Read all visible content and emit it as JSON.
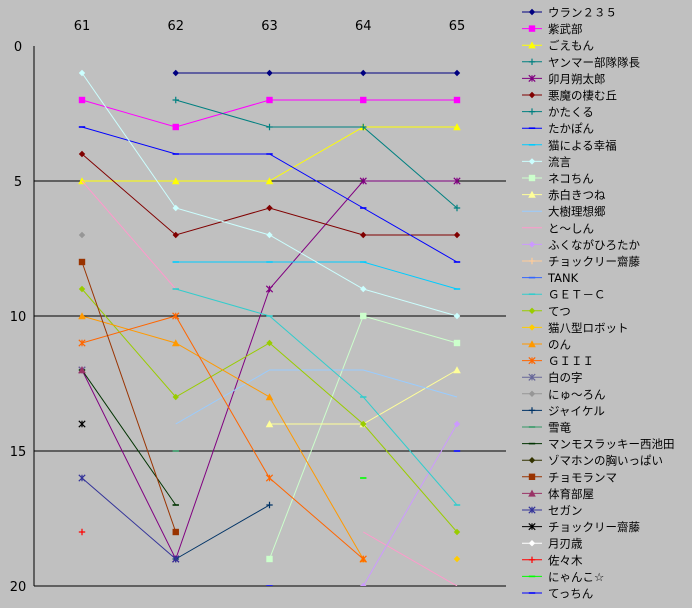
{
  "chart_data": {
    "type": "line",
    "x": [
      "61",
      "62",
      "63",
      "64",
      "65"
    ],
    "ylim": [
      0,
      20
    ],
    "y_reversed": true,
    "yticks": [
      0,
      5,
      10,
      15,
      20
    ],
    "grid": "horizontal at 5, 10, 15, 20",
    "legend_position": "right",
    "background": "#c0c0c0",
    "series": [
      {
        "name": "ウラン２３５",
        "color": "#000080",
        "marker": "diamond",
        "values": [
          null,
          1,
          1,
          1,
          1
        ]
      },
      {
        "name": "紫武部",
        "color": "#ff00ff",
        "marker": "square",
        "values": [
          2,
          3,
          2,
          2,
          2
        ]
      },
      {
        "name": "ごえもん",
        "color": "#ffff00",
        "marker": "triangle",
        "values": [
          5,
          5,
          5,
          3,
          3
        ]
      },
      {
        "name": "ヤンマー部隊隊長",
        "color": "#008080",
        "marker": "plus",
        "values": [
          null,
          2,
          3,
          3,
          6
        ]
      },
      {
        "name": "卯月朔太郎",
        "color": "#800080",
        "marker": "star",
        "values": [
          12,
          19,
          9,
          5,
          5
        ]
      },
      {
        "name": "悪魔の棲む丘",
        "color": "#800000",
        "marker": "diamond",
        "values": [
          4,
          7,
          6,
          7,
          7
        ]
      },
      {
        "name": "かたくる",
        "color": "#008080",
        "marker": "plus",
        "values": [
          null,
          null,
          null,
          null,
          null
        ]
      },
      {
        "name": "たかぽん",
        "color": "#0000ff",
        "marker": "dash",
        "values": [
          3,
          4,
          4,
          6,
          8
        ]
      },
      {
        "name": "猫による幸福",
        "color": "#00ccff",
        "marker": "dash",
        "values": [
          null,
          8,
          8,
          8,
          9
        ]
      },
      {
        "name": "流言",
        "color": "#ccffff",
        "marker": "diamond",
        "values": [
          1,
          6,
          7,
          9,
          10
        ]
      },
      {
        "name": "ネコちん",
        "color": "#ccffcc",
        "marker": "square",
        "values": [
          null,
          null,
          19,
          10,
          11
        ]
      },
      {
        "name": "赤白きつね",
        "color": "#ffff99",
        "marker": "triangle",
        "values": [
          null,
          null,
          14,
          14,
          12
        ]
      },
      {
        "name": "大樹理想郷",
        "color": "#99ccff",
        "marker": "none",
        "values": [
          null,
          14,
          12,
          12,
          13
        ]
      },
      {
        "name": "と～しん",
        "color": "#ff99cc",
        "marker": "none",
        "values": [
          5,
          9,
          null,
          18,
          20
        ]
      },
      {
        "name": "ふくながひろたか",
        "color": "#cc99ff",
        "marker": "diamond",
        "values": [
          null,
          null,
          null,
          20,
          14
        ]
      },
      {
        "name": "チョックリー齋藤",
        "color": "#ffcc99",
        "marker": "plus",
        "values": [
          null,
          null,
          null,
          null,
          null
        ]
      },
      {
        "name": "TANK",
        "color": "#3366ff",
        "marker": "dash",
        "values": [
          null,
          null,
          null,
          null,
          null
        ]
      },
      {
        "name": "ＧＥＴ－Ｃ",
        "color": "#33cccc",
        "marker": "dash",
        "values": [
          null,
          9,
          10,
          13,
          17
        ]
      },
      {
        "name": "てつ",
        "color": "#99cc00",
        "marker": "diamond",
        "values": [
          9,
          13,
          11,
          14,
          18
        ]
      },
      {
        "name": "猫八型ロボット",
        "color": "#ffcc00",
        "marker": "diamond",
        "values": [
          null,
          null,
          null,
          null,
          19
        ]
      },
      {
        "name": "のん",
        "color": "#ff9900",
        "marker": "triangle",
        "values": [
          10,
          11,
          13,
          19,
          null
        ]
      },
      {
        "name": "ＧＩＩＩ",
        "color": "#ff6600",
        "marker": "star",
        "values": [
          11,
          10,
          16,
          19,
          null
        ]
      },
      {
        "name": "白の字",
        "color": "#666699",
        "marker": "star",
        "values": [
          12,
          null,
          null,
          null,
          null
        ]
      },
      {
        "name": "にゅ～ろん",
        "color": "#969696",
        "marker": "diamond",
        "values": [
          7,
          null,
          null,
          null,
          null
        ]
      },
      {
        "name": "ジャイケル",
        "color": "#003366",
        "marker": "plus",
        "values": [
          null,
          19,
          17,
          null,
          null
        ]
      },
      {
        "name": "雪竜",
        "color": "#339966",
        "marker": "dash",
        "values": [
          null,
          15,
          null,
          null,
          null
        ]
      },
      {
        "name": "マンモスラッキー西池田",
        "color": "#003300",
        "marker": "dash",
        "values": [
          12,
          17,
          null,
          null,
          null
        ]
      },
      {
        "name": "ゾマホンの胸いっぱい",
        "color": "#333300",
        "marker": "diamond",
        "values": [
          null,
          null,
          null,
          null,
          null
        ]
      },
      {
        "name": "チョモランマ",
        "color": "#993300",
        "marker": "square",
        "values": [
          8,
          18,
          null,
          null,
          null
        ]
      },
      {
        "name": "体育部屋",
        "color": "#993366",
        "marker": "triangle",
        "values": [
          12,
          null,
          null,
          null,
          null
        ]
      },
      {
        "name": "セガン",
        "color": "#333399",
        "marker": "star",
        "values": [
          16,
          19,
          null,
          null,
          null
        ]
      },
      {
        "name": "チョックリー齋藤",
        "color": "#000000",
        "marker": "star",
        "values": [
          14,
          null,
          null,
          null,
          null
        ]
      },
      {
        "name": "月刃歳",
        "color": "#ffffff",
        "marker": "diamond",
        "values": [
          null,
          null,
          null,
          null,
          null
        ]
      },
      {
        "name": "佐々木",
        "color": "#ff0000",
        "marker": "plus",
        "values": [
          18,
          null,
          null,
          null,
          null
        ]
      },
      {
        "name": "にゃんこ☆",
        "color": "#00ff00",
        "marker": "dash",
        "values": [
          null,
          null,
          null,
          16,
          null
        ]
      },
      {
        "name": "てっちん",
        "color": "#0000ff",
        "marker": "dash",
        "values": [
          null,
          null,
          20,
          null,
          15
        ]
      }
    ]
  }
}
